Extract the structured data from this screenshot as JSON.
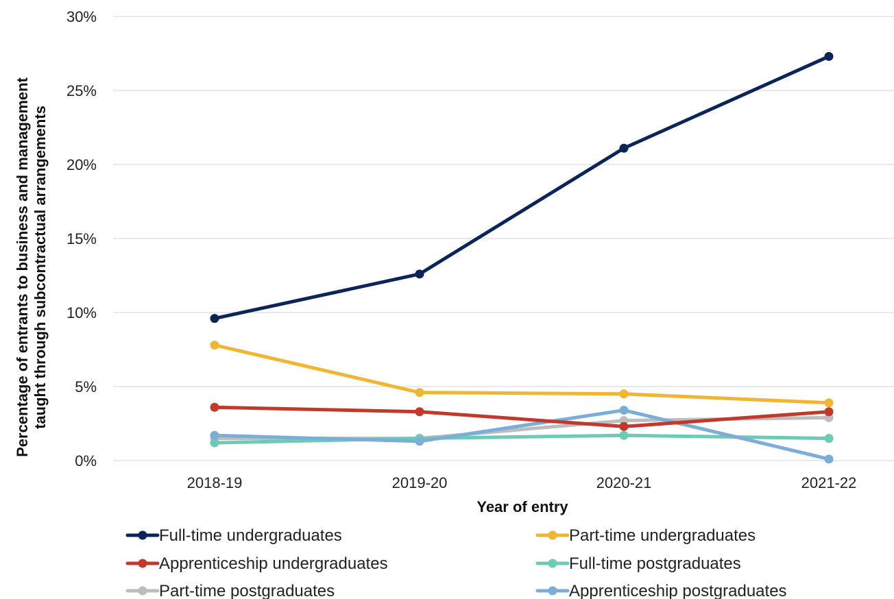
{
  "chart_data": {
    "type": "line",
    "title": "",
    "xlabel": "Year of entry",
    "ylabel_line1": "Percentage of entrants to business and management",
    "ylabel_line2": "taught through subcontractual arrangements",
    "categories": [
      "2018-19",
      "2019-20",
      "2020-21",
      "2021-22"
    ],
    "ylim": [
      0,
      30
    ],
    "yticks": [
      0,
      5,
      10,
      15,
      20,
      25,
      30
    ],
    "ytick_labels": [
      "0%",
      "5%",
      "10%",
      "15%",
      "20%",
      "25%",
      "30%"
    ],
    "grid": "horizontal",
    "legend_position": "bottom",
    "series": [
      {
        "name": "Full-time undergraduates",
        "color": "#0b2559",
        "values": [
          9.6,
          12.6,
          21.1,
          27.3
        ]
      },
      {
        "name": "Part-time undergraduates",
        "color": "#f0b533",
        "values": [
          7.8,
          4.6,
          4.5,
          3.9
        ]
      },
      {
        "name": "Apprenticeship undergraduates",
        "color": "#c0392b",
        "values": [
          3.6,
          3.3,
          2.3,
          3.3
        ]
      },
      {
        "name": "Full-time postgraduates",
        "color": "#6ccab5",
        "values": [
          1.2,
          1.5,
          1.7,
          1.5
        ]
      },
      {
        "name": "Part-time postgraduates",
        "color": "#bdbdbd",
        "values": [
          1.5,
          1.5,
          2.7,
          2.9
        ]
      },
      {
        "name": "Apprenticeship postgraduates",
        "color": "#7aadd8",
        "values": [
          1.7,
          1.3,
          3.4,
          0.1
        ]
      }
    ]
  }
}
